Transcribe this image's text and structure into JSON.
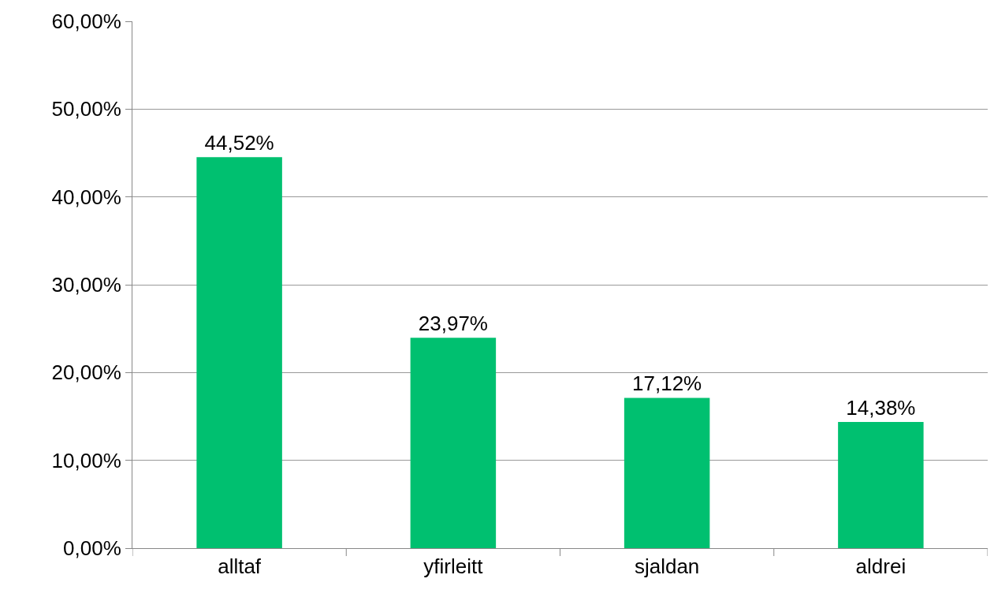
{
  "chart_data": {
    "type": "bar",
    "categories": [
      "alltaf",
      "yfirleitt",
      "sjaldan",
      "aldrei"
    ],
    "values": [
      44.52,
      23.97,
      17.12,
      14.38
    ],
    "value_labels": [
      "44,52%",
      "23,97%",
      "17,12%",
      "14,38%"
    ],
    "color": "#00c070",
    "ylim": [
      0,
      60
    ],
    "yticks": [
      {
        "value": 0,
        "label": "0,00%"
      },
      {
        "value": 10,
        "label": "10,00%"
      },
      {
        "value": 20,
        "label": "20,00%"
      },
      {
        "value": 30,
        "label": "30,00%"
      },
      {
        "value": 40,
        "label": "40,00%"
      },
      {
        "value": 50,
        "label": "50,00%"
      },
      {
        "value": 60,
        "label": "60,00%"
      }
    ],
    "grid": "y"
  }
}
